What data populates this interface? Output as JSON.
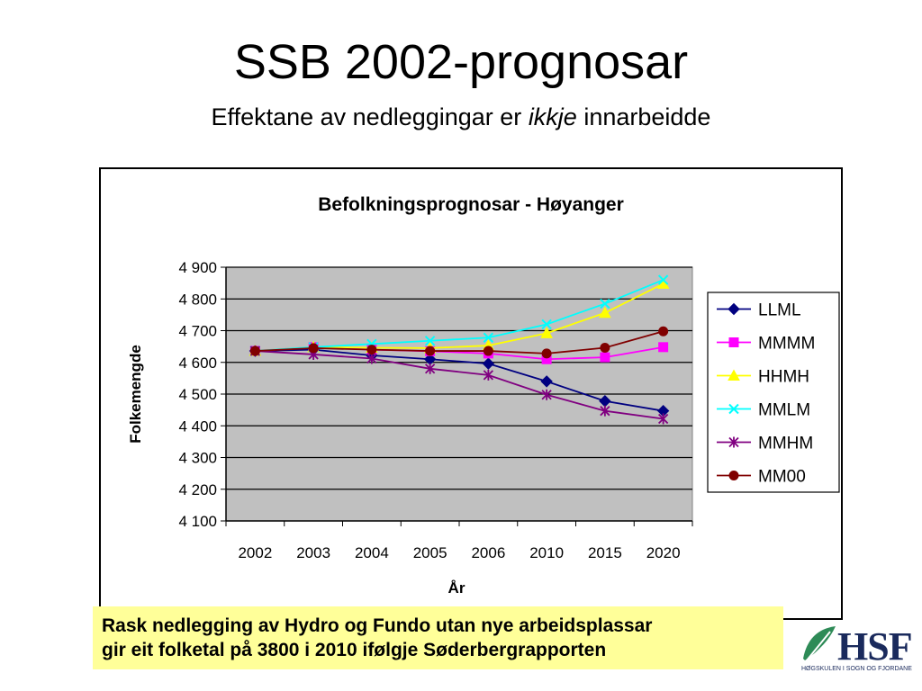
{
  "slide": {
    "title": "SSB 2002-prognosar",
    "subtitle_prefix": "Effektane av nedleggingar er ",
    "subtitle_emph": "ikkje",
    "subtitle_suffix": " innarbeidde",
    "callout_line1": "Rask nedlegging av Hydro og Fundo utan nye arbeidsplassar",
    "callout_line2": "gir eit folketal på 3800 i 2010 ifølgje Søderbergrapporten",
    "logo_text": "HSF",
    "logo_subtext": "HØGSKULEN I SOGN OG FJORDANE"
  },
  "chart_data": {
    "type": "line",
    "title": "Befolkningsprognosar - Høyanger",
    "xlabel": "År",
    "ylabel": "Folkemengde",
    "categories": [
      "2002",
      "2003",
      "2004",
      "2005",
      "2006",
      "2010",
      "2015",
      "2020"
    ],
    "yticks": [
      "4 100",
      "4 200",
      "4 300",
      "4 400",
      "4 500",
      "4 600",
      "4 700",
      "4 800",
      "4 900"
    ],
    "ylim": [
      4100,
      4900
    ],
    "grid": true,
    "legend_position": "right",
    "plot_background": "#c0c0c0",
    "series": [
      {
        "name": "LLML",
        "color": "#000080",
        "marker": "diamond",
        "values": [
          4636,
          4640,
          4622,
          4610,
          4596,
          4540,
          4478,
          4447
        ]
      },
      {
        "name": "MMMM",
        "color": "#ff00ff",
        "marker": "square",
        "values": [
          4636,
          4648,
          4640,
          4635,
          4628,
          4610,
          4616,
          4648
        ]
      },
      {
        "name": "HHMH",
        "color": "#ffff00",
        "marker": "triangle",
        "values": [
          4636,
          4648,
          4646,
          4645,
          4653,
          4692,
          4756,
          4848
        ]
      },
      {
        "name": "MMLM",
        "color": "#00ffff",
        "marker": "x",
        "values": [
          4636,
          4648,
          4658,
          4668,
          4678,
          4720,
          4785,
          4860
        ]
      },
      {
        "name": "MMHM",
        "color": "#800080",
        "marker": "star",
        "values": [
          4636,
          4625,
          4612,
          4580,
          4560,
          4498,
          4447,
          4422
        ]
      },
      {
        "name": "MM00",
        "color": "#800000",
        "marker": "circle",
        "values": [
          4636,
          4645,
          4640,
          4636,
          4636,
          4628,
          4646,
          4698
        ]
      }
    ]
  }
}
